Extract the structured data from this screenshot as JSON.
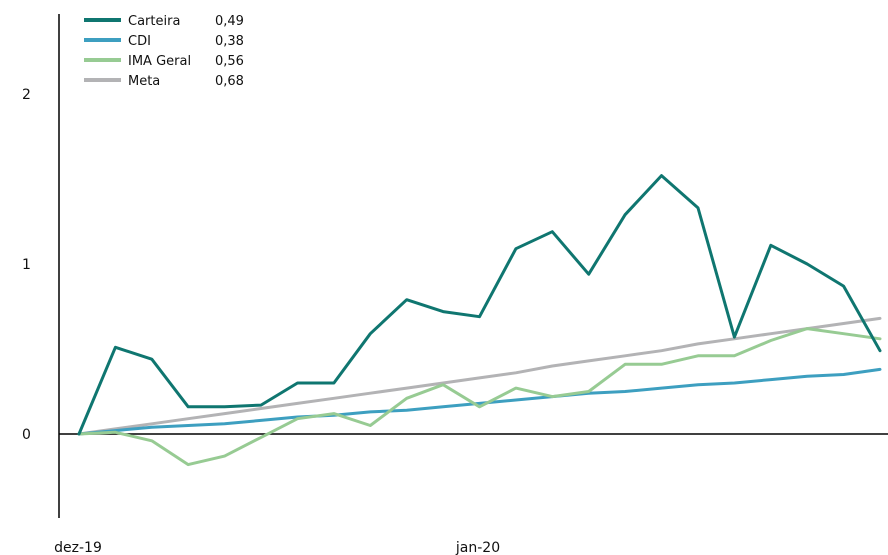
{
  "chart_data": {
    "type": "line",
    "x_ticks": [
      "dez-19",
      "jan-20"
    ],
    "y_ticks": [
      "0",
      "1",
      "2"
    ],
    "ylim": [
      -0.5,
      2.3
    ],
    "legend_position": "top-left",
    "series": [
      {
        "name": "Carteira",
        "legend_value": "0,49",
        "color": "#0f7670",
        "values": [
          0,
          0.51,
          0.44,
          0.16,
          0.16,
          0.17,
          0.3,
          0.3,
          0.59,
          0.79,
          0.72,
          0.69,
          1.09,
          1.19,
          0.94,
          1.29,
          1.52,
          1.33,
          0.57,
          1.11,
          1.0,
          0.87,
          0.49
        ]
      },
      {
        "name": "CDI",
        "legend_value": "0,38",
        "color": "#3d9fc0",
        "values": [
          0,
          0.02,
          0.04,
          0.05,
          0.06,
          0.08,
          0.1,
          0.11,
          0.13,
          0.14,
          0.16,
          0.18,
          0.2,
          0.22,
          0.24,
          0.25,
          0.27,
          0.29,
          0.3,
          0.32,
          0.34,
          0.35,
          0.38
        ]
      },
      {
        "name": "IMA Geral",
        "legend_value": "0,56",
        "color": "#97cb93",
        "values": [
          0,
          0.01,
          -0.04,
          -0.18,
          -0.13,
          -0.02,
          0.09,
          0.12,
          0.05,
          0.21,
          0.29,
          0.16,
          0.27,
          0.22,
          0.25,
          0.41,
          0.41,
          0.46,
          0.46,
          0.55,
          0.62,
          0.59,
          0.56
        ]
      },
      {
        "name": "Meta",
        "legend_value": "0,68",
        "color": "#b3b3b5",
        "values": [
          0,
          0.03,
          0.06,
          0.09,
          0.12,
          0.15,
          0.18,
          0.21,
          0.24,
          0.27,
          0.3,
          0.33,
          0.36,
          0.4,
          0.43,
          0.46,
          0.49,
          0.53,
          0.56,
          0.59,
          0.62,
          0.65,
          0.68
        ]
      }
    ]
  }
}
